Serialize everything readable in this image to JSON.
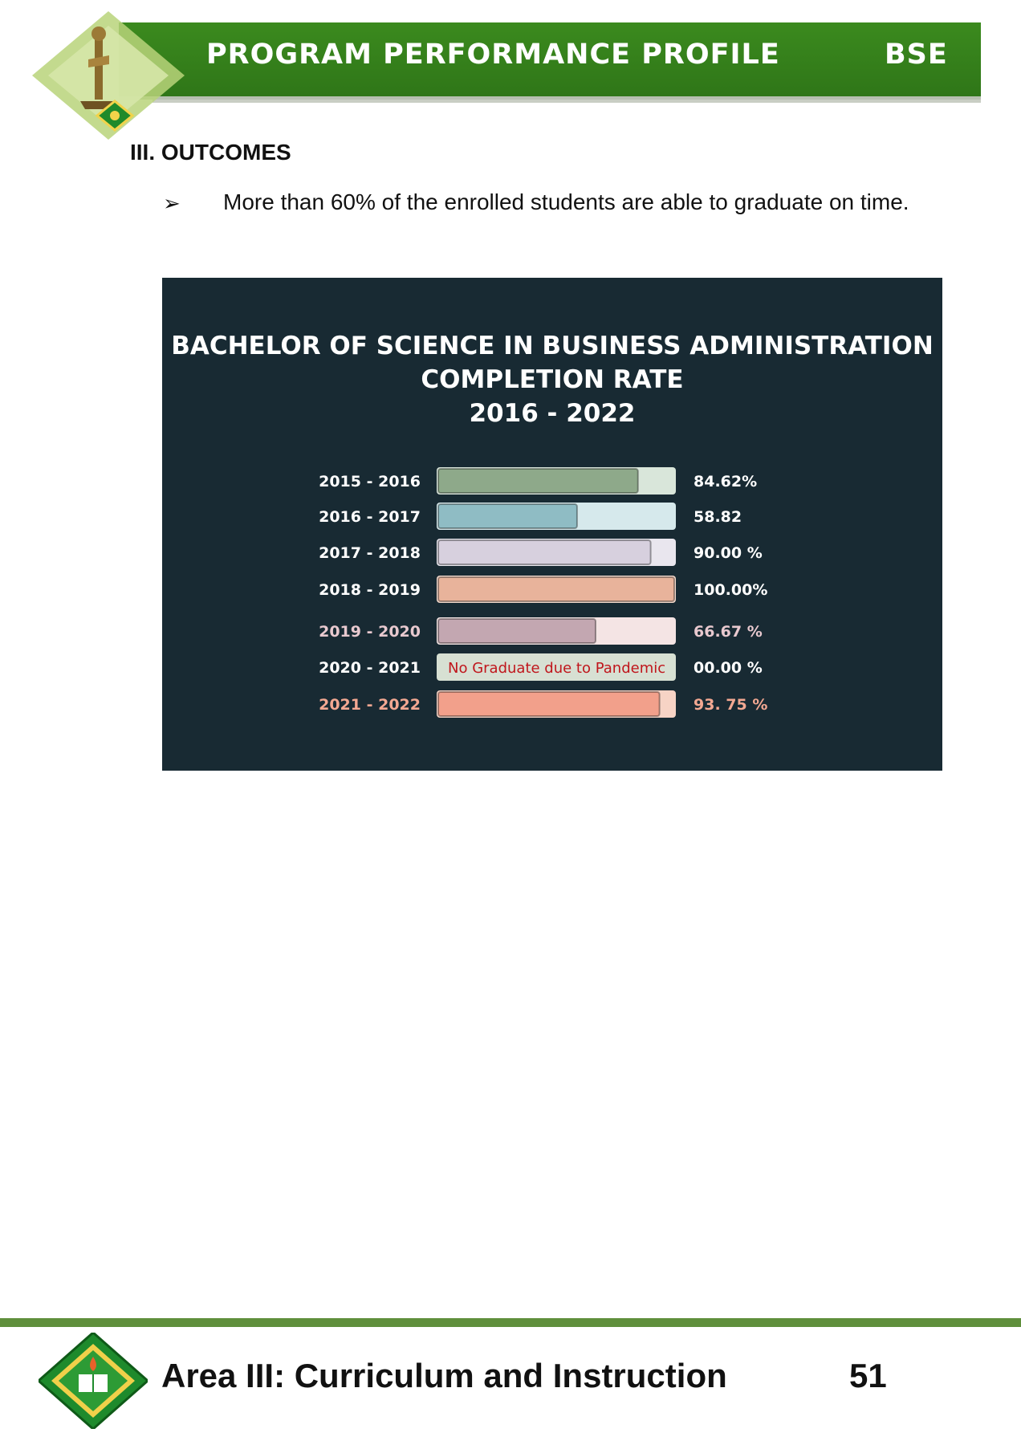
{
  "header": {
    "title": "PROGRAM PERFORMANCE PROFILE",
    "code": "BSE",
    "emblem": "university-statue-emblem"
  },
  "section": {
    "heading": "III. OUTCOMES",
    "bullet_icon": "arrowhead-bullet-icon",
    "bullet_text": "More than 60% of the enrolled students are able to graduate on time."
  },
  "chart_data": {
    "type": "bar",
    "title_lines": [
      "BACHELOR OF SCIENCE IN BUSINESS ADMINISTRATION",
      "COMPLETION RATE",
      "2016 - 2022"
    ],
    "categories": [
      "2015 - 2016",
      "2016 - 2017",
      "2017 - 2018",
      "2018 - 2019",
      "2019 - 2020",
      "2020 - 2021",
      "2021 - 2022"
    ],
    "values": [
      84.62,
      58.82,
      90.0,
      100.0,
      66.67,
      0,
      93.75
    ],
    "value_labels": [
      "84.62%",
      "58.82",
      "90.00 %",
      "100.00%",
      "66.67 %",
      "00.00 %",
      "93. 75 %"
    ],
    "bar_notes": [
      "",
      "",
      "",
      "",
      "",
      "No Graduate due to Pandemic",
      ""
    ],
    "ylim": [
      0,
      100
    ],
    "bar_colors": [
      "#8ea98a",
      "#8fbcc4",
      "#d7d0de",
      "#e8b39b",
      "#c3a7b1",
      "#d7e0d3",
      "#f2a08b"
    ],
    "track_colors": [
      "#d9e6da",
      "#d6e9ec",
      "#e9e6ee",
      "#f5d9cb",
      "#f4e4e4",
      "#d7e0d3",
      "#f7d3c5"
    ],
    "label_colors": [
      "#ffffff",
      "#ffffff",
      "#ffffff",
      "#ffffff",
      "#e8c9cf",
      "#ffffff",
      "#f3a892"
    ],
    "note_color": "#c0161c",
    "background": "#182a33"
  },
  "footer": {
    "area": "Area III: Curriculum and Instruction",
    "page": "51",
    "emblem": "university-seal-emblem"
  }
}
